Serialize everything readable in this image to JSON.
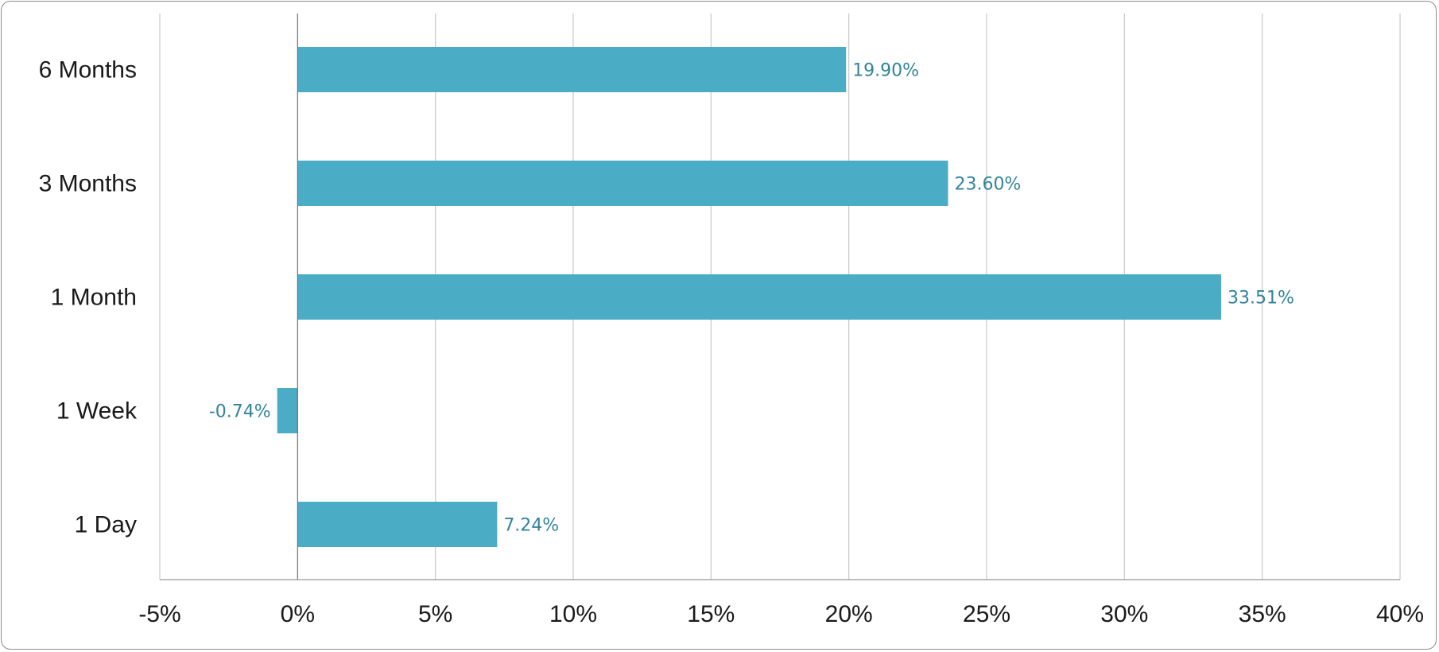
{
  "chart_data": {
    "type": "bar",
    "orientation": "horizontal",
    "categories": [
      "6 Months",
      "3 Months",
      "1 Month",
      "1 Week",
      "1 Day"
    ],
    "values": [
      19.9,
      23.6,
      33.51,
      -0.74,
      7.24
    ],
    "data_labels": [
      "19.90%",
      "23.60%",
      "33.51%",
      "-0.74%",
      "7.24%"
    ],
    "title": "",
    "xlabel": "",
    "ylabel": "",
    "xlim": [
      -5,
      40
    ],
    "x_ticks": [
      -5,
      0,
      5,
      10,
      15,
      20,
      25,
      30,
      35,
      40
    ],
    "x_tick_labels": [
      "-5%",
      "0%",
      "5%",
      "10%",
      "15%",
      "20%",
      "25%",
      "30%",
      "35%",
      "40%"
    ],
    "grid": "vertical",
    "legend": "none",
    "colors": {
      "bar": "#4bacc6",
      "data_label": "#31849b",
      "gridline": "#c8c8c8",
      "zero_line": "#6e6e6e",
      "text": "#1a1a1a"
    }
  }
}
